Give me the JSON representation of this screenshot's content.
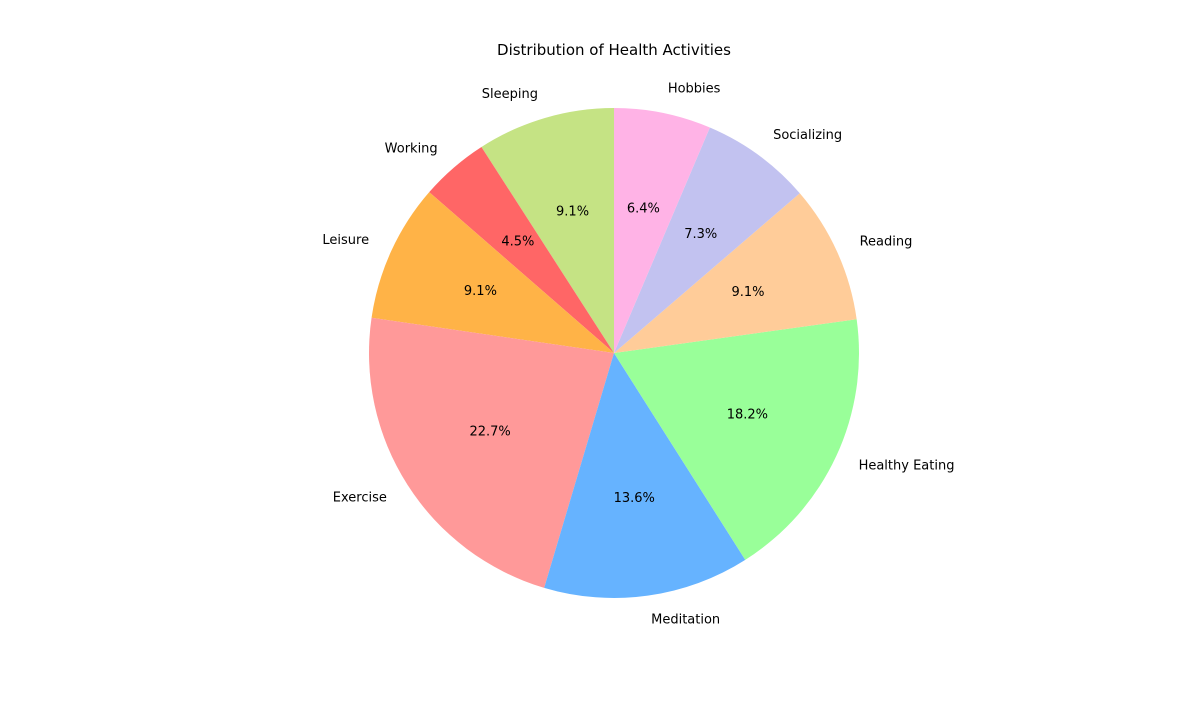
{
  "chart_data": {
    "type": "pie",
    "title": "Distribution of Health Activities",
    "start_angle": 90,
    "direction": "counterclockwise",
    "slices": [
      {
        "label": "Sleeping",
        "value": 9.1,
        "pct_label": "9.1%",
        "color": "#c5e384"
      },
      {
        "label": "Working",
        "value": 4.5,
        "pct_label": "4.5%",
        "color": "#ff6666"
      },
      {
        "label": "Leisure",
        "value": 9.1,
        "pct_label": "9.1%",
        "color": "#ffb347"
      },
      {
        "label": "Exercise",
        "value": 22.7,
        "pct_label": "22.7%",
        "color": "#ff9999"
      },
      {
        "label": "Meditation",
        "value": 13.6,
        "pct_label": "13.6%",
        "color": "#66b3ff"
      },
      {
        "label": "Healthy Eating",
        "value": 18.2,
        "pct_label": "18.2%",
        "color": "#99ff99"
      },
      {
        "label": "Reading",
        "value": 9.1,
        "pct_label": "9.1%",
        "color": "#ffcc99"
      },
      {
        "label": "Socializing",
        "value": 7.3,
        "pct_label": "7.3%",
        "color": "#c2c2f0"
      },
      {
        "label": "Hobbies",
        "value": 6.4,
        "pct_label": "6.4%",
        "color": "#ffb3e6"
      }
    ]
  }
}
